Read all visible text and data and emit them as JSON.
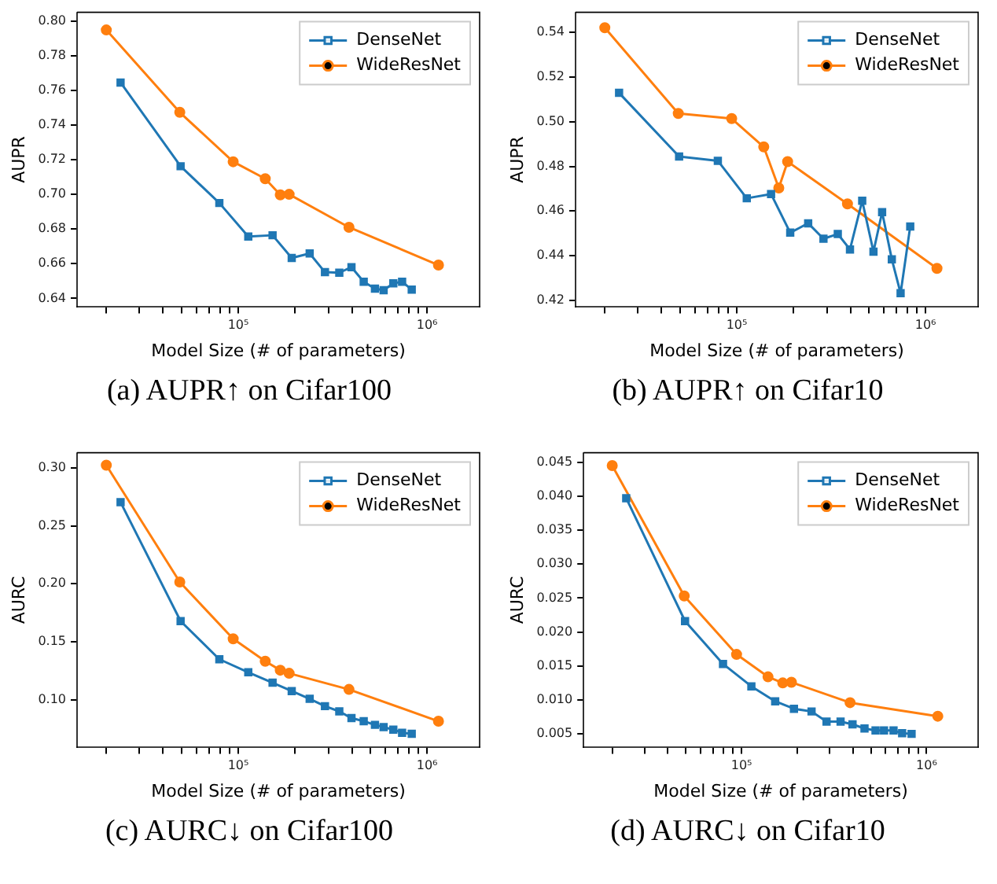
{
  "chart_data": [
    {
      "type": "line",
      "title": "(a) AUPR↑ on Cifar100",
      "xlabel": "Model Size (# of parameters)",
      "ylabel": "AUPR",
      "log": "x",
      "grid": false,
      "legend": "top right",
      "line_style": "solid",
      "xlim": [
        14000,
        1900000
      ],
      "xticks": [
        {
          "value": 20000,
          "label": null
        },
        {
          "value": 30000,
          "label": null
        },
        {
          "value": 40000,
          "label": null
        },
        {
          "value": 50000,
          "label": null
        },
        {
          "value": 60000,
          "label": null
        },
        {
          "value": 70000,
          "label": null
        },
        {
          "value": 80000,
          "label": null
        },
        {
          "value": 90000,
          "label": null
        },
        {
          "value": 100000,
          "label": "10⁵"
        },
        {
          "value": 200000,
          "label": null
        },
        {
          "value": 300000,
          "label": null
        },
        {
          "value": 400000,
          "label": null
        },
        {
          "value": 500000,
          "label": null
        },
        {
          "value": 600000,
          "label": null
        },
        {
          "value": 700000,
          "label": null
        },
        {
          "value": 800000,
          "label": null
        },
        {
          "value": 900000,
          "label": null
        },
        {
          "value": 1000000,
          "label": "10⁶"
        }
      ],
      "ylim": [
        0.635,
        0.805
      ],
      "yticks": [
        0.64,
        0.66,
        0.68,
        {
          "value": 0.7,
          "label": "0.70"
        },
        0.72,
        0.74,
        0.76,
        0.78,
        {
          "value": 0.8,
          "label": "0.80"
        }
      ],
      "series": [
        {
          "name": "DenseNet",
          "color": "#1f77b4",
          "marker": "square",
          "x": [
            23800,
            49500,
            79400,
            113000,
            152000,
            192000,
            239000,
            288000,
            343000,
            398000,
            462000,
            530000,
            589000,
            663000,
            738000,
            830000
          ],
          "values": [
            0.7645,
            0.7162,
            0.695,
            0.6757,
            0.6764,
            0.6633,
            0.6659,
            0.6551,
            0.6548,
            0.658,
            0.6496,
            0.6456,
            0.6447,
            0.6487,
            0.6496,
            0.645
          ]
        },
        {
          "name": "WideResNet",
          "color": "#ff7f0e",
          "marker": "circle",
          "x": [
            20000,
            49000,
            94000,
            139000,
            167000,
            186000,
            386000,
            1150000
          ],
          "values": [
            0.7948,
            0.7473,
            0.7188,
            0.709,
            0.6997,
            0.7,
            0.681,
            0.6592
          ]
        }
      ]
    },
    {
      "type": "line",
      "title": "(b) AUPR↑ on Cifar10",
      "xlabel": "Model Size (# of parameters)",
      "ylabel": "AUPR",
      "log": "x",
      "grid": false,
      "legend": "top right",
      "line_style": "solid",
      "xlim": [
        14000,
        1900000
      ],
      "xticks": [
        {
          "value": 20000,
          "label": null
        },
        {
          "value": 30000,
          "label": null
        },
        {
          "value": 40000,
          "label": null
        },
        {
          "value": 50000,
          "label": null
        },
        {
          "value": 60000,
          "label": null
        },
        {
          "value": 70000,
          "label": null
        },
        {
          "value": 80000,
          "label": null
        },
        {
          "value": 90000,
          "label": null
        },
        {
          "value": 100000,
          "label": "10⁵"
        },
        {
          "value": 200000,
          "label": null
        },
        {
          "value": 300000,
          "label": null
        },
        {
          "value": 400000,
          "label": null
        },
        {
          "value": 500000,
          "label": null
        },
        {
          "value": 600000,
          "label": null
        },
        {
          "value": 700000,
          "label": null
        },
        {
          "value": 800000,
          "label": null
        },
        {
          "value": 900000,
          "label": null
        },
        {
          "value": 1000000,
          "label": "10⁶"
        }
      ],
      "ylim": [
        0.417,
        0.549
      ],
      "yticks": [
        0.42,
        0.44,
        0.46,
        0.48,
        {
          "value": 0.5,
          "label": "0.50"
        },
        0.52,
        0.54
      ],
      "series": [
        {
          "name": "DenseNet",
          "color": "#1f77b4",
          "marker": "square",
          "x": [
            23800,
            49500,
            79400,
            113000,
            152000,
            192000,
            239000,
            288000,
            343000,
            398000,
            462000,
            530000,
            589000,
            663000,
            738000,
            830000
          ],
          "values": [
            0.5129,
            0.4844,
            0.4825,
            0.4657,
            0.4676,
            0.4503,
            0.4545,
            0.4476,
            0.4497,
            0.4428,
            0.4646,
            0.4418,
            0.4595,
            0.4384,
            0.4232,
            0.4531
          ]
        },
        {
          "name": "WideResNet",
          "color": "#ff7f0e",
          "marker": "circle",
          "x": [
            20000,
            49000,
            94000,
            139000,
            167000,
            186000,
            386000,
            1150000
          ],
          "values": [
            0.5421,
            0.5037,
            0.5014,
            0.4887,
            0.4703,
            0.4821,
            0.4632,
            0.4343
          ]
        }
      ]
    },
    {
      "type": "line",
      "title": "(c) AURC↓ on Cifar100",
      "xlabel": "Model Size (# of parameters)",
      "ylabel": "AURC",
      "log": "x",
      "grid": false,
      "legend": "top right",
      "line_style": "solid",
      "xlim": [
        14000,
        1900000
      ],
      "xticks": [
        {
          "value": 20000,
          "label": null
        },
        {
          "value": 30000,
          "label": null
        },
        {
          "value": 40000,
          "label": null
        },
        {
          "value": 50000,
          "label": null
        },
        {
          "value": 60000,
          "label": null
        },
        {
          "value": 70000,
          "label": null
        },
        {
          "value": 80000,
          "label": null
        },
        {
          "value": 90000,
          "label": null
        },
        {
          "value": 100000,
          "label": "10⁵"
        },
        {
          "value": 200000,
          "label": null
        },
        {
          "value": 300000,
          "label": null
        },
        {
          "value": 400000,
          "label": null
        },
        {
          "value": 500000,
          "label": null
        },
        {
          "value": 600000,
          "label": null
        },
        {
          "value": 700000,
          "label": null
        },
        {
          "value": 800000,
          "label": null
        },
        {
          "value": 900000,
          "label": null
        },
        {
          "value": 1000000,
          "label": "10⁶"
        }
      ],
      "ylim": [
        0.059,
        0.313
      ],
      "yticks": [
        {
          "value": 0.1,
          "label": "0.10"
        },
        0.15,
        {
          "value": 0.2,
          "label": "0.20"
        },
        0.25,
        {
          "value": 0.3,
          "label": "0.30"
        }
      ],
      "series": [
        {
          "name": "DenseNet",
          "color": "#1f77b4",
          "marker": "square",
          "x": [
            23800,
            49500,
            79400,
            113000,
            152000,
            192000,
            239000,
            288000,
            343000,
            398000,
            462000,
            530000,
            589000,
            663000,
            738000,
            830000
          ],
          "values": [
            0.2703,
            0.1679,
            0.135,
            0.1238,
            0.1148,
            0.1076,
            0.1009,
            0.0946,
            0.0901,
            0.0843,
            0.0816,
            0.0785,
            0.0766,
            0.0744,
            0.0717,
            0.0708
          ]
        },
        {
          "name": "WideResNet",
          "color": "#ff7f0e",
          "marker": "circle",
          "x": [
            20000,
            49000,
            94000,
            139000,
            167000,
            186000,
            386000,
            1150000
          ],
          "values": [
            0.3022,
            0.2016,
            0.1526,
            0.1333,
            0.1256,
            0.1229,
            0.109,
            0.0816
          ]
        }
      ]
    },
    {
      "type": "line",
      "title": "(d) AURC↓ on Cifar10",
      "xlabel": "Model Size (# of parameters)",
      "ylabel": "AURC",
      "log": "x",
      "grid": false,
      "legend": "top right",
      "line_style": "solid",
      "xlim": [
        14000,
        1900000
      ],
      "xticks": [
        {
          "value": 20000,
          "label": null
        },
        {
          "value": 30000,
          "label": null
        },
        {
          "value": 40000,
          "label": null
        },
        {
          "value": 50000,
          "label": null
        },
        {
          "value": 60000,
          "label": null
        },
        {
          "value": 70000,
          "label": null
        },
        {
          "value": 80000,
          "label": null
        },
        {
          "value": 90000,
          "label": null
        },
        {
          "value": 100000,
          "label": "10⁵"
        },
        {
          "value": 200000,
          "label": null
        },
        {
          "value": 300000,
          "label": null
        },
        {
          "value": 400000,
          "label": null
        },
        {
          "value": 500000,
          "label": null
        },
        {
          "value": 600000,
          "label": null
        },
        {
          "value": 700000,
          "label": null
        },
        {
          "value": 800000,
          "label": null
        },
        {
          "value": 900000,
          "label": null
        },
        {
          "value": 1000000,
          "label": "10⁶"
        }
      ],
      "ylim": [
        0.003,
        0.0464
      ],
      "yticks": [
        0.005,
        {
          "value": 0.01,
          "label": "0.010"
        },
        0.015,
        {
          "value": 0.02,
          "label": "0.020"
        },
        0.025,
        {
          "value": 0.03,
          "label": "0.030"
        },
        0.035,
        {
          "value": 0.04,
          "label": "0.040"
        },
        0.045
      ],
      "series": [
        {
          "name": "DenseNet",
          "color": "#1f77b4",
          "marker": "square",
          "x": [
            23800,
            49500,
            79400,
            113000,
            152000,
            192000,
            239000,
            288000,
            343000,
            398000,
            462000,
            530000,
            589000,
            663000,
            738000,
            830000
          ],
          "values": [
            0.0397,
            0.0216,
            0.0153,
            0.012,
            0.0098,
            0.0087,
            0.0083,
            0.0068,
            0.0068,
            0.0064,
            0.0058,
            0.0055,
            0.0055,
            0.0055,
            0.0051,
            0.005
          ]
        },
        {
          "name": "WideResNet",
          "color": "#ff7f0e",
          "marker": "circle",
          "x": [
            20000,
            49000,
            94000,
            139000,
            167000,
            186000,
            386000,
            1150000
          ],
          "values": [
            0.0445,
            0.0253,
            0.0167,
            0.0134,
            0.0125,
            0.0126,
            0.0096,
            0.0076
          ]
        }
      ]
    }
  ]
}
